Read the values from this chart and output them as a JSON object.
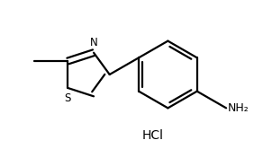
{
  "background_color": "#ffffff",
  "line_color": "#000000",
  "line_width": 1.6,
  "text_color": "#000000",
  "label_N": "N",
  "label_S": "S",
  "label_NH2": "NH₂",
  "label_HCl": "HCl",
  "label_methyl": "",
  "figsize": [
    3.02,
    1.66
  ],
  "dpi": 100
}
